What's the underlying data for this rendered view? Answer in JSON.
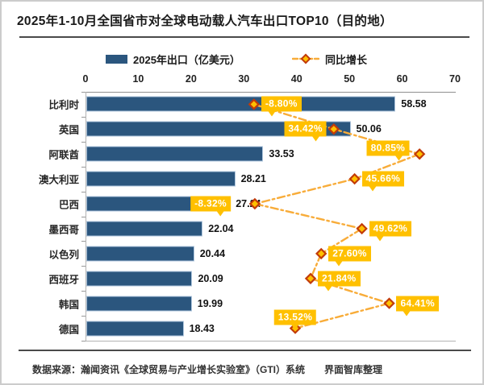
{
  "title": "2025年1-10月全国省市对全球电动载人汽车出口TOP10（目的地）",
  "footer": "数据来源：瀚闻资讯《全球贸易与产业增长实验室》（GTI）系统　　界面智库整理",
  "legend": {
    "bar_label": "2025年出口（亿美元）",
    "line_label": "同比增长"
  },
  "colors": {
    "bar": "#2B567E",
    "bar_border": "#AFC6DD",
    "gold_label": "#FFC000",
    "line": "#F8AC39",
    "diamond_fill": "#FFC000",
    "diamond_stroke": "#C23B09",
    "rule": "#4a4a4a",
    "axis": "#b3b3b3"
  },
  "chart_data": {
    "type": "bar",
    "orientation": "horizontal",
    "title": "2025年1-10月全国省市对全球电动载人汽车出口TOP10（目的地）",
    "categories": [
      "比利时",
      "英国",
      "阿联酋",
      "澳大利亚",
      "巴西",
      "墨西哥",
      "以色列",
      "西班牙",
      "韩国",
      "德国"
    ],
    "series": [
      {
        "name": "2025年出口（亿美元）",
        "type": "bar",
        "values": [
          58.58,
          50.06,
          33.53,
          28.21,
          27.24,
          22.04,
          20.44,
          20.09,
          19.99,
          18.43
        ]
      },
      {
        "name": "同比增长",
        "type": "line",
        "values_pct": [
          -8.8,
          34.42,
          80.85,
          45.66,
          -8.32,
          49.62,
          27.6,
          21.84,
          64.41,
          13.52
        ],
        "labels": [
          "-8.80%",
          "34.42%",
          "80.85%",
          "45.66%",
          "-8.32%",
          "49.62%",
          "27.60%",
          "21.84%",
          "64.41%",
          "13.52%"
        ]
      }
    ],
    "x_axis": {
      "ticks": [
        0,
        10,
        20,
        30,
        40,
        50,
        60,
        70
      ],
      "min": 0,
      "max": 70
    },
    "secondary_axis": {
      "min": -100,
      "max": 100,
      "unit": "%",
      "visible": false
    },
    "grid": false,
    "legend_position": "top",
    "label_placement": [
      "right",
      "left",
      "left-up",
      "right",
      "far-left",
      "right",
      "right",
      "right",
      "right",
      "above"
    ]
  }
}
